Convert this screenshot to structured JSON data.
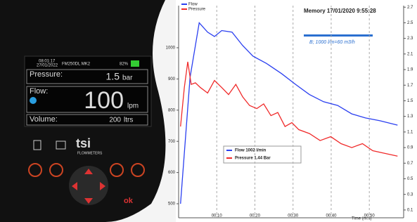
{
  "device": {
    "time": "08:01:17",
    "date": "27/01/2022",
    "model": "FM250DL MK2",
    "battery": "82%",
    "pressure": {
      "label": "Pressure:",
      "value": "1.5",
      "unit": "bar"
    },
    "flow": {
      "label": "Flow:",
      "value": "100",
      "unit": "lpm"
    },
    "volume": {
      "label": "Volume:",
      "value": "200",
      "unit": "ltrs"
    },
    "brand": "tsi",
    "brand_sub": "FLOWMETERS",
    "ok_button": "ok"
  },
  "chart_data": {
    "type": "line",
    "title": "Memory 17/01/2020 9:55:28",
    "annotation": "B; 1000 l/m=60 m3/h",
    "x_label": "Time (m:s)",
    "readout": [
      "Flow 1002 l/min",
      "Pressure 1.44 Bar"
    ],
    "series": [
      {
        "name": "Flow",
        "color": "#2a3ff0",
        "x": [
          0.5,
          3,
          5.4,
          7.6,
          9.4,
          11.3,
          14,
          16.8,
          19.5,
          23,
          27,
          30.6,
          34.3,
          38,
          41.7,
          45.4,
          49,
          52.8,
          57.4
        ],
        "values": [
          500,
          905,
          1080,
          1050,
          1036,
          1055,
          1050,
          1007,
          973,
          950,
          917,
          883,
          850,
          827,
          815,
          788,
          775,
          766,
          752
        ]
      },
      {
        "name": "Pressure",
        "color": "#f02a2a",
        "axis": "y2",
        "x": [
          0.5,
          1.5,
          2.4,
          3.3,
          4.4,
          5.7,
          7.6,
          9.4,
          11.3,
          13.1,
          15,
          16.8,
          18.6,
          20.5,
          22.3,
          24.2,
          26,
          27.9,
          29.7,
          31.5,
          34.3,
          37.1,
          39.9,
          42.6,
          45.4,
          48.2,
          50.9,
          53.7,
          57.4
        ],
        "values": [
          1.17,
          1.67,
          2.0,
          1.71,
          1.73,
          1.67,
          1.6,
          1.76,
          1.67,
          1.58,
          1.71,
          1.55,
          1.44,
          1.4,
          1.46,
          1.31,
          1.35,
          1.17,
          1.22,
          1.13,
          1.08,
          0.99,
          1.04,
          0.95,
          0.9,
          0.95,
          0.86,
          0.83,
          0.79
        ]
      }
    ],
    "xlim": [
      0,
      59
    ],
    "xticks": [
      {
        "value": 10,
        "label": "00:10"
      },
      {
        "value": 20,
        "label": "00:20"
      },
      {
        "value": 30,
        "label": "00:30"
      },
      {
        "value": 40,
        "label": "00:40"
      },
      {
        "value": 50,
        "label": "00:50"
      }
    ],
    "ylim": [
      455,
      1135
    ],
    "yticks": [
      500,
      600,
      700,
      800,
      900,
      1000
    ],
    "y2lim": [
      0,
      2.72
    ],
    "y2ticks": [
      0.1,
      0.3,
      0.5,
      0.7,
      0.9,
      1.1,
      1.3,
      1.5,
      1.7,
      1.9,
      2.1,
      2.3,
      2.5,
      2.7
    ],
    "grid": true
  }
}
